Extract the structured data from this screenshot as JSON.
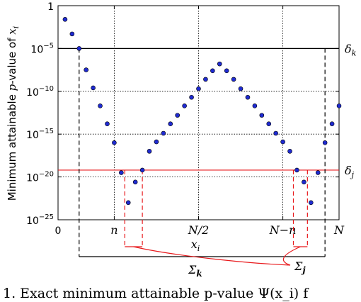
{
  "chart_data": {
    "type": "scatter",
    "ylabel_parts": {
      "prefix": "Minimum attainable ",
      "p": "p",
      "suffix": "-value of ",
      "x": "x",
      "sub": "i"
    },
    "xlabel": {
      "x": "x",
      "sub": "i"
    },
    "y_scale": "log",
    "ylim": [
      1e-25,
      1
    ],
    "y_ticks": [
      {
        "value": 1,
        "label": "1"
      },
      {
        "value": 1e-05,
        "label": "10",
        "exp": "−5"
      },
      {
        "value": 1e-10,
        "label": "10",
        "exp": "−10"
      },
      {
        "value": 1e-15,
        "label": "10",
        "exp": "−15"
      },
      {
        "value": 1e-20,
        "label": "10",
        "exp": "−20"
      },
      {
        "value": 1e-25,
        "label": "10",
        "exp": "−25"
      }
    ],
    "x_ticks": [
      {
        "value": 0,
        "label": "0"
      },
      {
        "value": 8,
        "label": "n"
      },
      {
        "value": 20,
        "label": "N/2"
      },
      {
        "value": 32,
        "label": "N−n"
      },
      {
        "value": 40,
        "label": "N"
      }
    ],
    "xlim": [
      0,
      40
    ],
    "grid": true,
    "points_log10": [
      {
        "x": 1,
        "y": -1.6
      },
      {
        "x": 2,
        "y": -3.3
      },
      {
        "x": 3,
        "y": -5.0
      },
      {
        "x": 4,
        "y": -7.5
      },
      {
        "x": 5,
        "y": -9.6
      },
      {
        "x": 6,
        "y": -11.7
      },
      {
        "x": 7,
        "y": -13.8
      },
      {
        "x": 8,
        "y": -16.0
      },
      {
        "x": 9,
        "y": -19.5
      },
      {
        "x": 10,
        "y": -23.0
      },
      {
        "x": 11,
        "y": -20.6
      },
      {
        "x": 12,
        "y": -19.2
      },
      {
        "x": 13,
        "y": -17.0
      },
      {
        "x": 14,
        "y": -15.9
      },
      {
        "x": 15,
        "y": -14.9
      },
      {
        "x": 16,
        "y": -13.8
      },
      {
        "x": 17,
        "y": -12.8
      },
      {
        "x": 18,
        "y": -11.7
      },
      {
        "x": 19,
        "y": -10.7
      },
      {
        "x": 20,
        "y": -9.7
      },
      {
        "x": 21,
        "y": -8.6
      },
      {
        "x": 22,
        "y": -7.6
      },
      {
        "x": 23,
        "y": -6.8
      },
      {
        "x": 24,
        "y": -7.6
      },
      {
        "x": 25,
        "y": -8.6
      },
      {
        "x": 26,
        "y": -9.7
      },
      {
        "x": 27,
        "y": -10.7
      },
      {
        "x": 28,
        "y": -11.7
      },
      {
        "x": 29,
        "y": -12.8
      },
      {
        "x": 30,
        "y": -13.8
      },
      {
        "x": 31,
        "y": -14.9
      },
      {
        "x": 32,
        "y": -15.9
      },
      {
        "x": 33,
        "y": -17.0
      },
      {
        "x": 34,
        "y": -19.2
      },
      {
        "x": 35,
        "y": -20.6
      },
      {
        "x": 36,
        "y": -23.0
      },
      {
        "x": 37,
        "y": -19.5
      },
      {
        "x": 38,
        "y": -16.0
      },
      {
        "x": 39,
        "y": -13.8
      },
      {
        "x": 40,
        "y": -11.7
      }
    ],
    "thresholds": [
      {
        "name": "delta_k",
        "label": "δ",
        "sub": "k",
        "log10": -5.0,
        "color": "#000000"
      },
      {
        "name": "delta_j",
        "label": "δ",
        "sub": "j",
        "log10": -19.2,
        "color": "#e8191c"
      }
    ],
    "brackets": [
      {
        "name": "sigma_k",
        "label": "Σ",
        "sub": "k",
        "color": "#000000"
      },
      {
        "name": "sigma_j",
        "label": "Σ",
        "sub": "j",
        "color": "#e8191c"
      }
    ],
    "colors": {
      "point_fill": "#1f2bd1",
      "point_stroke": "#000000",
      "grid": "#000000",
      "red": "#e8191c"
    }
  },
  "caption_text": "1. Exact minimum attainable p-value Ψ(x_i) f"
}
